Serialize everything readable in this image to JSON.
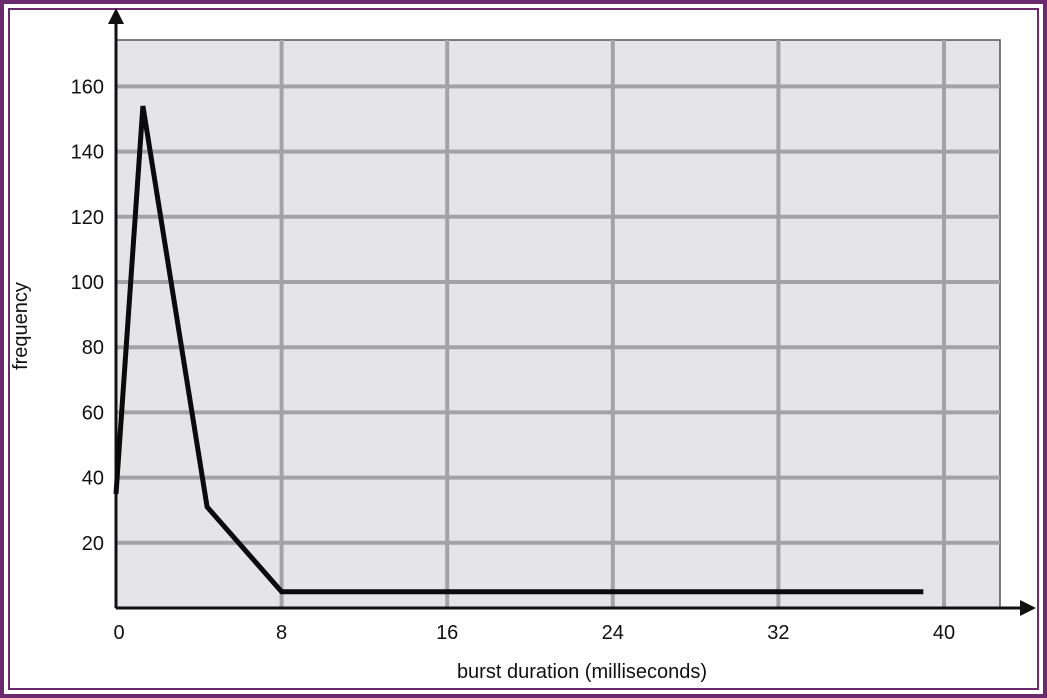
{
  "chart_data": {
    "type": "line",
    "title": "",
    "xlabel": "burst duration (milliseconds)",
    "ylabel": "frequency",
    "x_ticks": [
      0,
      8,
      16,
      24,
      32,
      40
    ],
    "y_ticks": [
      20,
      40,
      60,
      80,
      100,
      120,
      140,
      160
    ],
    "xlim": [
      0,
      43
    ],
    "ylim": [
      0,
      175
    ],
    "grid": true,
    "series": [
      {
        "x": [
          0,
          1.3,
          4.4,
          8,
          39
        ],
        "y": [
          35,
          154,
          31,
          5,
          5
        ]
      }
    ]
  },
  "colors": {
    "plot_background": "#e5e4e6",
    "gridline": "#a3a3a5",
    "line": "#0b0b0b",
    "frame": "#6b2a6e"
  }
}
